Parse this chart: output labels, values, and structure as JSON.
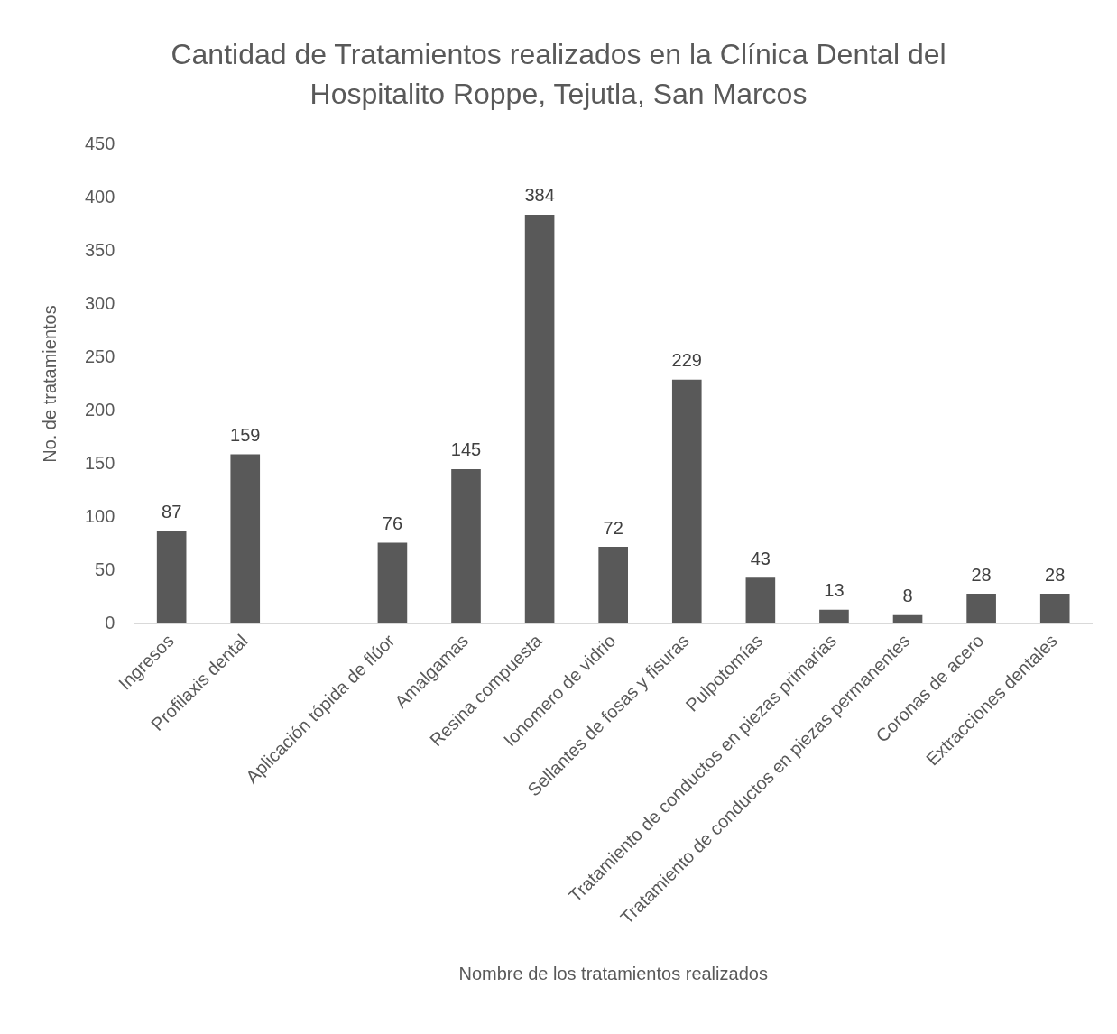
{
  "chart_data": {
    "type": "bar",
    "title": "Cantidad de Tratamientos realizados en la Clínica Dental del Hospitalito Roppe, Tejutla, San Marcos",
    "xlabel": "Nombre de los tratamientos realizados",
    "ylabel": "No. de tratamientos",
    "categories": [
      "Ingresos",
      "Profilaxis dental",
      null,
      "Aplicación tópida de flúor",
      "Amalgamas",
      "Resina compuesta",
      "Ionomero de vidrio",
      "Sellantes de fosas y fisuras",
      "Pulpotomías",
      "Tratamiento de conductos en piezas primarias",
      "Tratamiento de conductos en piezas permanentes",
      "Coronas de acero",
      "Extracciones dentales"
    ],
    "values": [
      87,
      159,
      null,
      76,
      145,
      384,
      72,
      229,
      43,
      13,
      8,
      28,
      28
    ],
    "color": "#595959",
    "ylim": [
      0,
      450
    ],
    "yticks": [
      0,
      50,
      100,
      150,
      200,
      250,
      300,
      350,
      400,
      450
    ],
    "grid": false,
    "legend": false,
    "data_labels": true
  }
}
